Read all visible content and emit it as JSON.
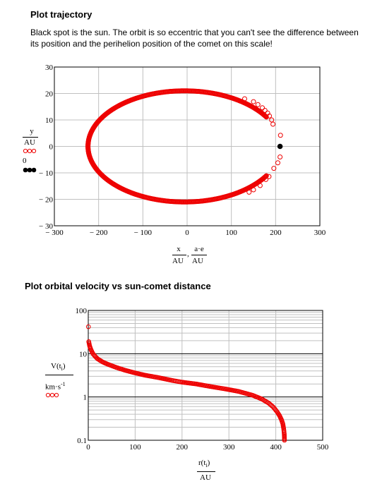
{
  "page": {
    "title1": "Plot trajectory",
    "desc": "Black spot is the sun. The orbit is so eccentric that you can't see the difference between its position and the perihelion position of the comet on this scale!",
    "title2": "Plot orbital velocity vs sun-comet distance"
  },
  "colors": {
    "series": "#ee0000",
    "sun": "#000000",
    "axis": "#000000",
    "grid": "#c0c0c0"
  },
  "chart_data": [
    {
      "type": "scatter",
      "xlabel": {
        "num": "x",
        "sep": ",",
        "num2": "a·e",
        "den": "AU",
        "den2": "AU"
      },
      "ylabel": {
        "num": "y",
        "den": "AU",
        "den2": "0"
      },
      "xlim": [
        -300,
        300
      ],
      "ylim": [
        -30,
        30
      ],
      "grid": true,
      "xticks": [
        "-300",
        "-200",
        "-100",
        "0",
        "100",
        "200",
        "300"
      ],
      "yticks": [
        "30",
        "20",
        "10",
        "0",
        "-10",
        "-20",
        "-30"
      ],
      "series": [
        {
          "marker": "open-circle",
          "color": "#ee0000",
          "orbit": {
            "semi_major_au": 218,
            "semi_minor_au": 21,
            "center_x_au": -6,
            "center_y_au": 0
          },
          "points": [
            [
              211,
              4.2
            ],
            [
              210,
              -4
            ],
            [
              205,
              -6.2
            ],
            [
              196,
              -8.3
            ],
            [
              194,
              8.4
            ],
            [
              191,
              10
            ],
            [
              185,
              -11.4
            ],
            [
              186,
              11.5
            ],
            [
              182,
              12.6
            ],
            [
              178,
              -12.5
            ],
            [
              176,
              13.6
            ],
            [
              170,
              14.6
            ],
            [
              165,
              -14.8
            ],
            [
              160,
              15.8
            ],
            [
              150,
              -16.4
            ],
            [
              150,
              16.9
            ],
            [
              140,
              -17.3
            ],
            [
              130,
              18
            ]
          ]
        },
        {
          "marker": "filled-circle",
          "color": "#000000",
          "points": [
            [
              210,
              0
            ]
          ]
        }
      ]
    },
    {
      "type": "scatter",
      "xlabel": {
        "num": "r(t",
        "sub": "i",
        "close": ")",
        "den": "AU"
      },
      "ylabel": {
        "num": "V(t",
        "sub": "i",
        "close": ")",
        "den": "km·s",
        "sup": "-1"
      },
      "xlim": [
        0,
        500
      ],
      "ylim": [
        0.1,
        100
      ],
      "yscale": "log",
      "grid": true,
      "xticks": [
        "0",
        "100",
        "200",
        "300",
        "400",
        "500"
      ],
      "yticks": [
        "100",
        "10",
        "1",
        "0.1"
      ],
      "series": [
        {
          "marker": "open-circle",
          "color": "#ee0000",
          "points": [
            [
              0.3,
              42
            ],
            [
              1,
              19
            ],
            [
              3,
              15
            ],
            [
              5,
              13
            ],
            [
              8,
              11
            ],
            [
              10,
              10
            ],
            [
              15,
              8.6
            ],
            [
              20,
              7.6
            ],
            [
              30,
              6.5
            ],
            [
              40,
              5.8
            ],
            [
              60,
              4.8
            ],
            [
              80,
              4.1
            ],
            [
              100,
              3.6
            ],
            [
              120,
              3.2
            ],
            [
              150,
              2.8
            ],
            [
              180,
              2.4
            ],
            [
              200,
              2.2
            ],
            [
              230,
              2
            ],
            [
              260,
              1.75
            ],
            [
              290,
              1.55
            ],
            [
              320,
              1.35
            ],
            [
              350,
              1.1
            ],
            [
              370,
              0.9
            ],
            [
              385,
              0.72
            ],
            [
              395,
              0.58
            ],
            [
              403,
              0.45
            ],
            [
              408,
              0.37
            ],
            [
              412,
              0.3
            ],
            [
              415,
              0.24
            ],
            [
              417,
              0.18
            ],
            [
              418,
              0.14
            ],
            [
              418.5,
              0.1
            ]
          ]
        }
      ]
    }
  ]
}
